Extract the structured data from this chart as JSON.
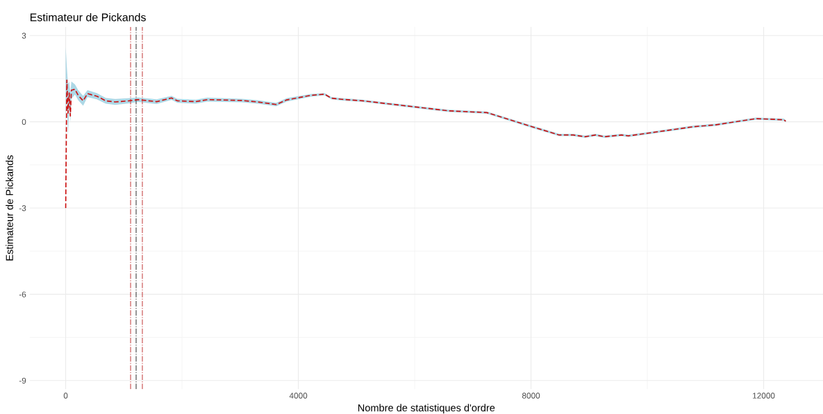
{
  "chart_data": {
    "type": "line",
    "title": "Estimateur de Pickands",
    "xlabel": "Nombre de statistiques d'ordre",
    "ylabel": "Estimateur de Pickands",
    "x": [
      0,
      20,
      40,
      60,
      80,
      98,
      160,
      215,
      300,
      375,
      535,
      690,
      850,
      1090,
      1245,
      1565,
      1820,
      1920,
      2235,
      2435,
      3025,
      3300,
      3620,
      3800,
      4215,
      4450,
      4570,
      4750,
      5105,
      5995,
      6590,
      7240,
      7950,
      8485,
      8725,
      8930,
      9110,
      9260,
      9555,
      9675,
      10030,
      10800,
      11160,
      11870,
      12345,
      12380
    ],
    "series": [
      {
        "color": "#cc1111",
        "line_style": "dashed",
        "values": [
          -3.0,
          1.45,
          0.3,
          1.0,
          0.2,
          1.1,
          1.13,
          0.92,
          0.73,
          0.98,
          0.89,
          0.73,
          0.69,
          0.73,
          0.77,
          0.7,
          0.83,
          0.73,
          0.7,
          0.77,
          0.74,
          0.69,
          0.6,
          0.76,
          0.92,
          0.96,
          0.82,
          0.78,
          0.73,
          0.52,
          0.38,
          0.32,
          -0.13,
          -0.46,
          -0.46,
          -0.52,
          -0.46,
          -0.52,
          -0.46,
          -0.49,
          -0.39,
          -0.17,
          -0.11,
          0.11,
          0.07,
          0.02
        ],
        "upper": [
          2.6,
          1.9,
          1.3,
          1.4,
          1.0,
          1.4,
          1.3,
          1.1,
          0.9,
          1.1,
          1.0,
          0.83,
          0.79,
          0.82,
          0.85,
          0.78,
          0.9,
          0.8,
          0.77,
          0.84,
          0.8,
          0.75,
          0.66,
          0.82,
          0.97,
          1.0,
          0.86,
          0.82,
          0.77,
          0.56,
          0.42,
          0.36,
          -0.09,
          -0.42,
          -0.42,
          -0.48,
          -0.42,
          -0.48,
          -0.42,
          -0.45,
          -0.35,
          -0.13,
          -0.07,
          0.15,
          0.11,
          0.06
        ],
        "lower": [
          0.2,
          0.9,
          -0.5,
          0.5,
          0.0,
          0.8,
          0.95,
          0.75,
          0.56,
          0.86,
          0.78,
          0.63,
          0.59,
          0.64,
          0.69,
          0.62,
          0.76,
          0.66,
          0.63,
          0.7,
          0.68,
          0.63,
          0.54,
          0.7,
          0.87,
          0.92,
          0.78,
          0.74,
          0.69,
          0.48,
          0.34,
          0.28,
          -0.17,
          -0.5,
          -0.5,
          -0.56,
          -0.5,
          -0.56,
          -0.5,
          -0.53,
          -0.43,
          -0.21,
          -0.15,
          0.07,
          0.03,
          -0.02
        ]
      }
    ],
    "ref_lines": [
      {
        "axis": "x",
        "value": 1116,
        "color": "#cd5c5c",
        "line_style": "dashdot"
      },
      {
        "axis": "x",
        "value": 1211,
        "color": "#555555",
        "line_style": "dashdot"
      },
      {
        "axis": "x",
        "value": 1318,
        "color": "#cd5c5c",
        "line_style": "dashdot"
      }
    ],
    "xlim": [
      -620,
      13020
    ],
    "xticks": [
      0,
      4000,
      8000,
      12000
    ],
    "ylim": [
      -9.3,
      3.3
    ],
    "yticks": [
      3,
      0,
      -3,
      -6,
      -9
    ],
    "grid": true,
    "legend": false,
    "marker": "none"
  }
}
